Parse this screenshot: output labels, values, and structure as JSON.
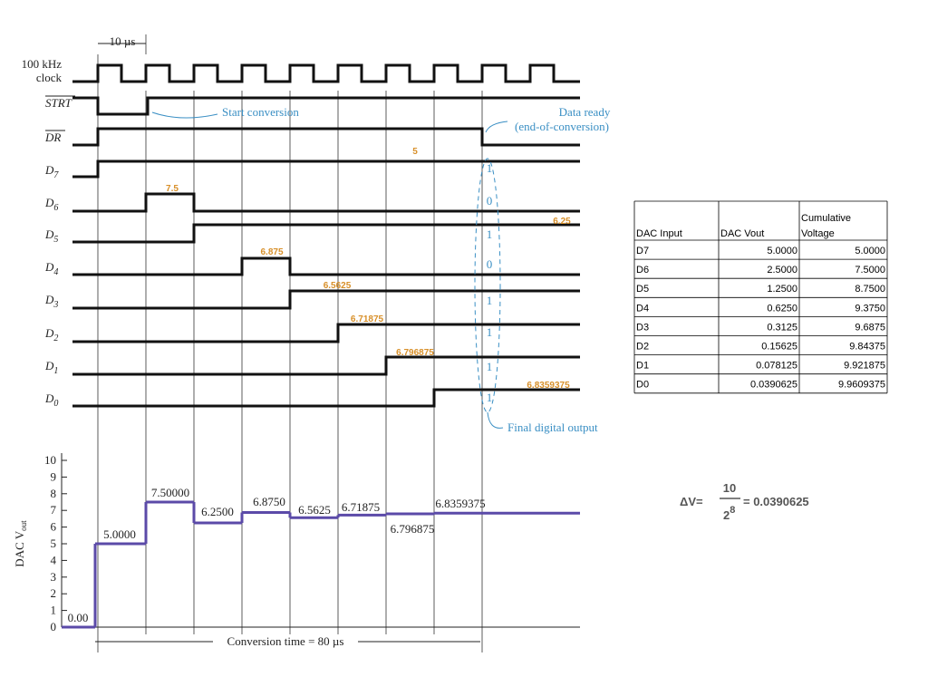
{
  "timing": {
    "period_label": "10 µs",
    "clock_label": [
      "100 kHz",
      "clock"
    ],
    "signals": [
      {
        "letter": "STRT",
        "index": null
      },
      {
        "letter": "DR",
        "index": null
      },
      {
        "letter": "D",
        "index": "7"
      },
      {
        "letter": "D",
        "index": "6"
      },
      {
        "letter": "D",
        "index": "5"
      },
      {
        "letter": "D",
        "index": "4"
      },
      {
        "letter": "D",
        "index": "3"
      },
      {
        "letter": "D",
        "index": "2"
      },
      {
        "letter": "D",
        "index": "1"
      },
      {
        "letter": "D",
        "index": "0"
      }
    ],
    "start_note": "Start conversion",
    "ready_note": [
      "Data ready",
      "(end-of-conversion)"
    ],
    "final_note": "Final digital output",
    "cumulative_notes": [
      "5",
      "7.5",
      "6.25",
      "6.875",
      "6.5625",
      "6.71875",
      "6.796875",
      "6.8359375"
    ],
    "bits": [
      "1",
      "0",
      "1",
      "0",
      "1",
      "1",
      "1",
      "1"
    ],
    "conversion_note": "Conversion time = 80 µs"
  },
  "dac_plot": {
    "y_label": {
      "text": "DAC V",
      "sub": "out"
    },
    "ylim": [
      0,
      10
    ],
    "yticks": [
      0,
      1,
      2,
      3,
      4,
      5,
      6,
      7,
      8,
      9,
      10
    ],
    "values": [
      0,
      5,
      7.5,
      6.25,
      6.875,
      6.5625,
      6.71875,
      6.796875,
      6.8359375
    ],
    "value_labels": [
      "0.00",
      "5.0000",
      "7.50000",
      "6.2500",
      "6.8750",
      "6.5625",
      "6.71875",
      "6.796875",
      "6.8359375"
    ]
  },
  "table": {
    "header": [
      "DAC Input",
      "DAC Vout",
      "Cumulative Voltage"
    ],
    "rows": [
      [
        "D7",
        "5.0000",
        "5.0000"
      ],
      [
        "D6",
        "2.5000",
        "7.5000"
      ],
      [
        "D5",
        "1.2500",
        "8.7500"
      ],
      [
        "D4",
        "0.6250",
        "9.3750"
      ],
      [
        "D3",
        "0.3125",
        "9.6875"
      ],
      [
        "D2",
        "0.15625",
        "9.84375"
      ],
      [
        "D1",
        "0.078125",
        "9.921875"
      ],
      [
        "D0",
        "0.0390625",
        "9.9609375"
      ]
    ]
  },
  "formula": {
    "lhs": "ΔV=",
    "numerator": "10",
    "base": "2",
    "exponent": "8",
    "result": "= 0.0390625"
  }
}
